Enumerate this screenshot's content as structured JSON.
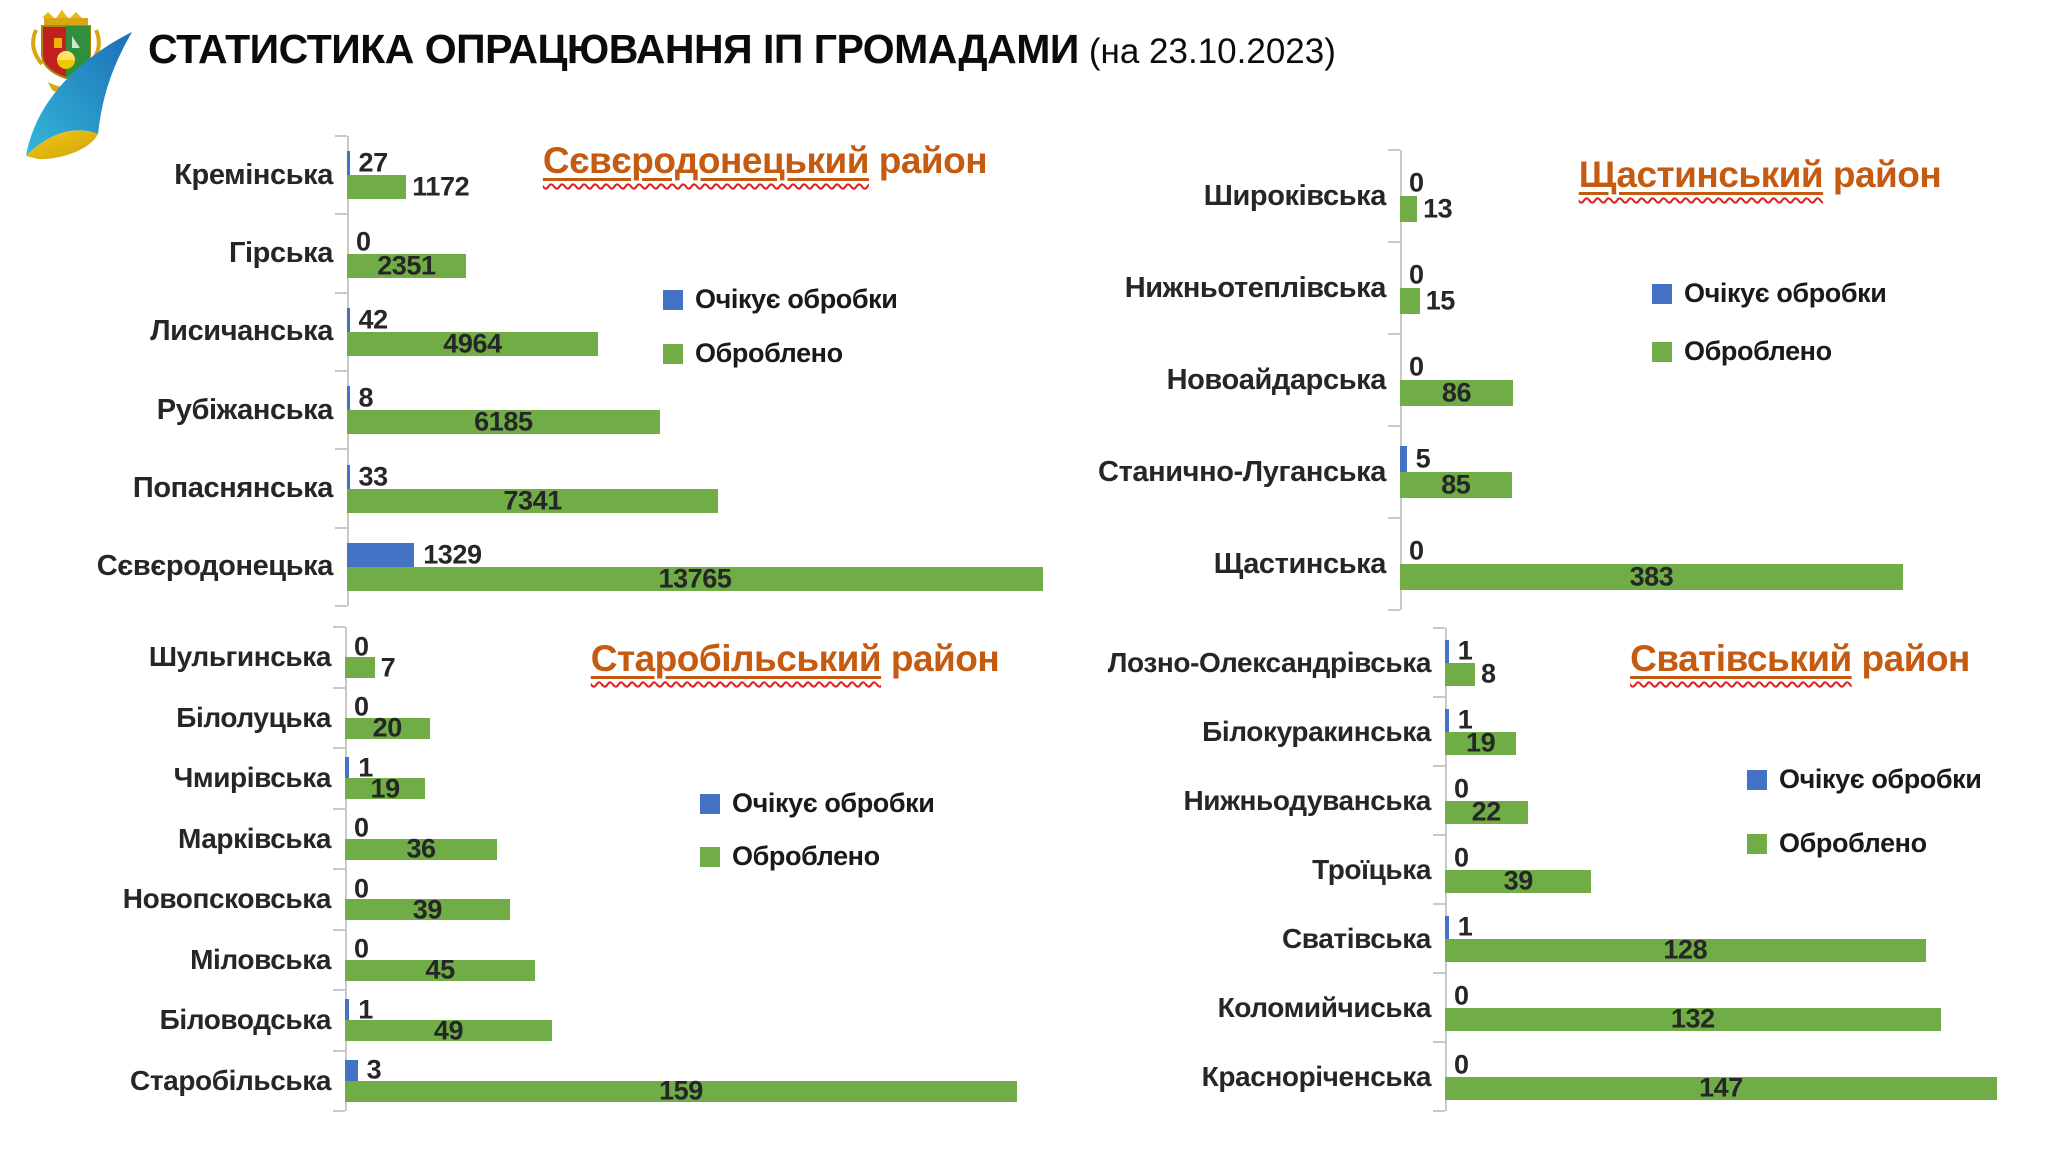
{
  "header": {
    "title": "СТАТИСТИКА ОПРАЦЮВАННЯ ІП ГРОМАДАМИ",
    "date_suffix": "(на 23.10.2023)"
  },
  "legend": {
    "pending": "Очікує обробки",
    "processed": "Оброблено"
  },
  "colors": {
    "pending": "#4472C4",
    "processed": "#70AD47",
    "chart_title": "#C55A11",
    "axis": "#C9C9C9",
    "text": "#262626",
    "squiggle": "#E01E1E"
  },
  "chart_data": [
    {
      "type": "bar",
      "orientation": "horizontal",
      "title": "Сєвєродонецький район",
      "title_underlined_word": "Сєвєродонецький",
      "title_rest": "район",
      "legend_position": "right",
      "grid": false,
      "categories": [
        "Кремінська",
        "Гірська",
        "Лисичанська",
        "Рубіжанська",
        "Попаснянська",
        "Сєвєродонецька"
      ],
      "series": [
        {
          "name": "Очікує обробки",
          "color": "#4472C4",
          "values": [
            27,
            0,
            42,
            8,
            33,
            1329
          ]
        },
        {
          "name": "Оброблено",
          "color": "#70AD47",
          "values": [
            1172,
            2351,
            4964,
            6185,
            7341,
            13765
          ]
        }
      ],
      "xlim": [
        0,
        13765
      ]
    },
    {
      "type": "bar",
      "orientation": "horizontal",
      "title": "Щастинський район",
      "title_underlined_word": "Щастинський",
      "title_rest": "район",
      "legend_position": "right",
      "grid": false,
      "categories": [
        "Широківська",
        "Нижньотеплівська",
        "Новоайдарська",
        "Станично-Луганська",
        "Щастинська"
      ],
      "series": [
        {
          "name": "Очікує обробки",
          "color": "#4472C4",
          "values": [
            0,
            0,
            0,
            5,
            0
          ]
        },
        {
          "name": "Оброблено",
          "color": "#70AD47",
          "values": [
            13,
            15,
            86,
            85,
            383
          ]
        }
      ],
      "xlim": [
        0,
        383
      ]
    },
    {
      "type": "bar",
      "orientation": "horizontal",
      "title": "Старобільський район",
      "title_underlined_word": "Старобільський",
      "title_rest": "район",
      "legend_position": "right",
      "grid": false,
      "categories": [
        "Шульгинська",
        "Білолуцька",
        "Чмирівська",
        "Марківська",
        "Новопсковська",
        "Міловська",
        "Біловодська",
        "Старобільська"
      ],
      "series": [
        {
          "name": "Очікує обробки",
          "color": "#4472C4",
          "values": [
            0,
            0,
            1,
            0,
            0,
            0,
            1,
            3
          ]
        },
        {
          "name": "Оброблено",
          "color": "#70AD47",
          "values": [
            7,
            20,
            19,
            36,
            39,
            45,
            49,
            159
          ]
        }
      ],
      "xlim": [
        0,
        159
      ]
    },
    {
      "type": "bar",
      "orientation": "horizontal",
      "title": "Сватівський район",
      "title_underlined_word": "Сватівський",
      "title_rest": "район",
      "legend_position": "right",
      "grid": false,
      "categories": [
        "Лозно-Олександрівська",
        "Білокуракинська",
        "Нижньодуванська",
        "Троїцька",
        "Сватівська",
        "Коломийчиська",
        "Красноріченська"
      ],
      "series": [
        {
          "name": "Очікує обробки",
          "color": "#4472C4",
          "values": [
            1,
            1,
            0,
            0,
            1,
            0,
            0
          ]
        },
        {
          "name": "Оброблено",
          "color": "#70AD47",
          "values": [
            8,
            19,
            22,
            39,
            128,
            132,
            147
          ]
        }
      ],
      "xlim": [
        0,
        147
      ]
    }
  ]
}
